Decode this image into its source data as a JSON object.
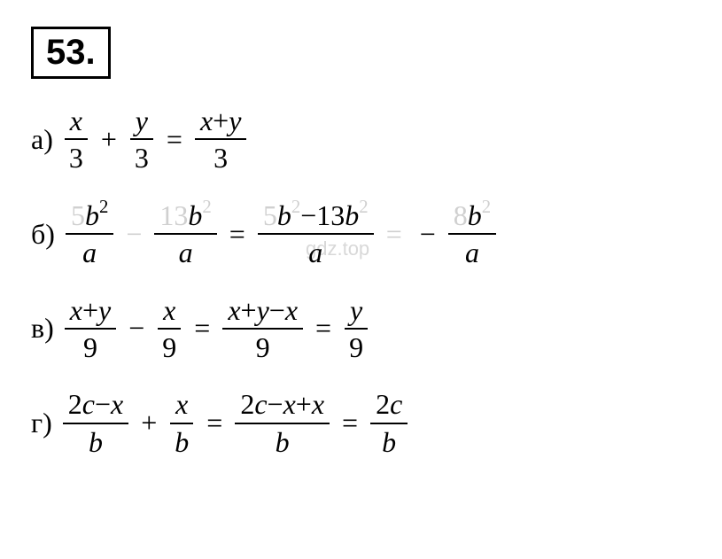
{
  "problem": {
    "number": "53."
  },
  "equations": {
    "a": {
      "label": "а)",
      "f1_num": "x",
      "f1_den": "3",
      "op1": "+",
      "f2_num": "y",
      "f2_den": "3",
      "eq1": "=",
      "f3_num_1": "x",
      "f3_num_op": "+",
      "f3_num_2": "y",
      "f3_den": "3"
    },
    "b": {
      "label": "б)",
      "f1_coef": "5",
      "f1_var": "b",
      "f1_exp": "2",
      "f1_den": "a",
      "op1": "−",
      "f2_coef": "13",
      "f2_var": "b",
      "f2_exp": "2",
      "f2_den": "a",
      "eq1": "=",
      "f3_coef1": "5",
      "f3_var1": "b",
      "f3_exp1": "2",
      "f3_mid": "−13",
      "f3_var2": "b",
      "f3_exp2": "2",
      "f3_den": "a",
      "eq2": "=",
      "neg": "−",
      "f4_coef": "8",
      "f4_var": "b",
      "f4_exp": "2",
      "f4_den": "a"
    },
    "c": {
      "label": "в)",
      "f1_num_1": "x",
      "f1_num_op": "+",
      "f1_num_2": "y",
      "f1_den": "9",
      "op1": "−",
      "f2_num": "x",
      "f2_den": "9",
      "eq1": "=",
      "f3_num_1": "x",
      "f3_num_op1": "+",
      "f3_num_2": "y",
      "f3_num_op2": "−",
      "f3_num_3": "x",
      "f3_den": "9",
      "eq2": "=",
      "f4_num": "y",
      "f4_den": "9"
    },
    "d": {
      "label": "г)",
      "f1_coef": "2",
      "f1_var1": "c",
      "f1_op": "−",
      "f1_var2": "x",
      "f1_den": "b",
      "op1": "+",
      "f2_num": "x",
      "f2_den": "b",
      "eq1": "=",
      "f3_coef": "2",
      "f3_var1": "c",
      "f3_op1": "−",
      "f3_var2": "x",
      "f3_op2": "+",
      "f3_var3": "x",
      "f3_den": "b",
      "eq2": "=",
      "f4_coef": "2",
      "f4_var": "c",
      "f4_den": "b"
    }
  },
  "watermark": "gdz.top"
}
